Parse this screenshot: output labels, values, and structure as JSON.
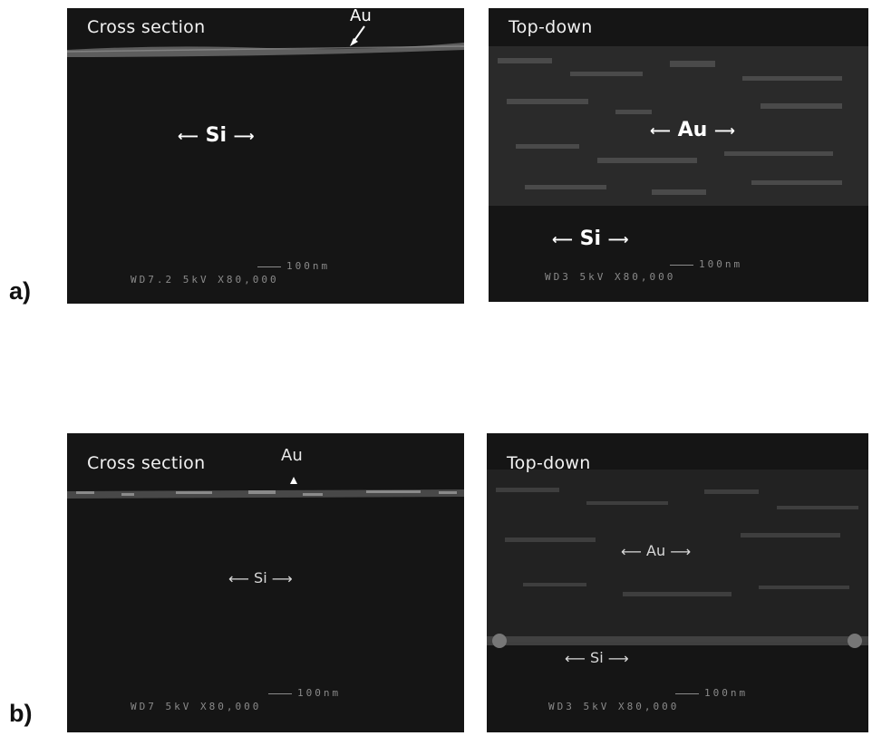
{
  "rows": [
    {
      "label": "a)"
    },
    {
      "label": "b)"
    }
  ],
  "panels": [
    {
      "title": "Cross section",
      "layer_label": "Au",
      "substrate_label": "Si",
      "scale": {
        "bar": "100nm",
        "info": "WD7.2 5kV X80,000"
      }
    },
    {
      "title": "Top-down",
      "film_label": "Au",
      "substrate_label": "Si",
      "scale": {
        "bar": "100nm",
        "info": "WD3 5kV X80,000"
      }
    },
    {
      "title": "Cross section",
      "layer_label": "Au",
      "substrate_label": "Si",
      "scale": {
        "bar": "100nm",
        "info": "WD7 5kV X80,000"
      }
    },
    {
      "title": "Top-down",
      "film_label": "Au",
      "substrate_label": "Si",
      "scale": {
        "bar": "100nm",
        "info": "WD3 5kV X80,000"
      }
    }
  ],
  "colors": {
    "background": "#151515",
    "text": "#ffffff",
    "figure_bg": "#ffffff"
  }
}
